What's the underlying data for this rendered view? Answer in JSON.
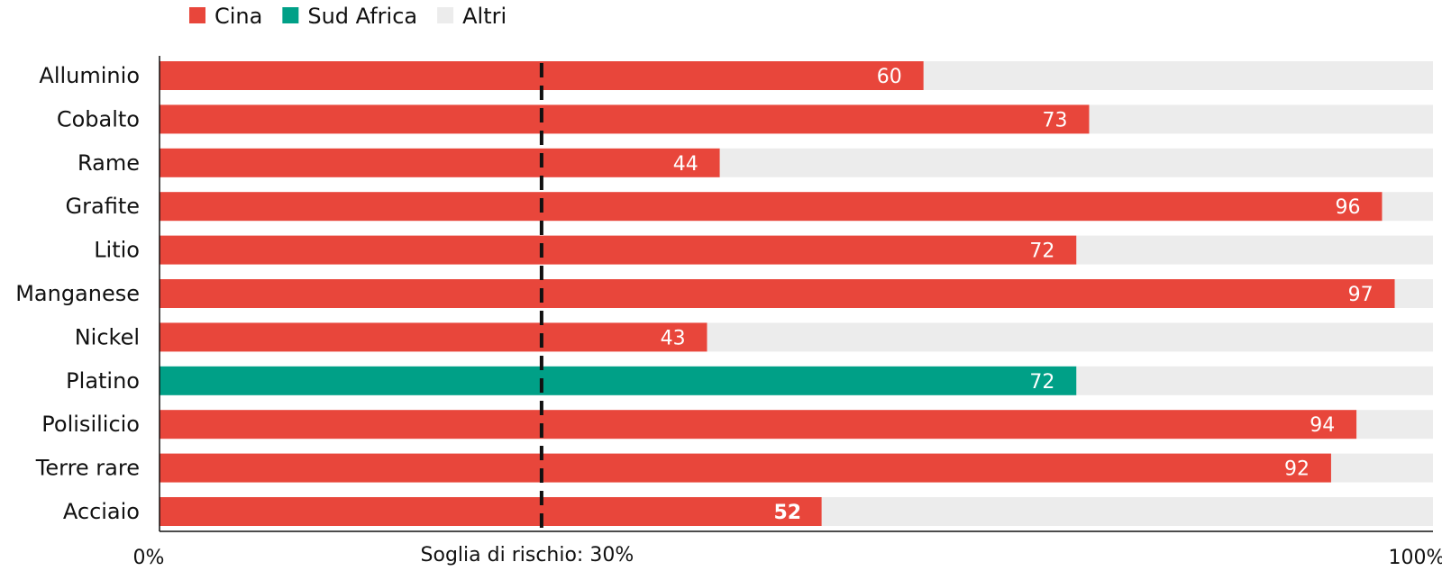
{
  "chart_data": {
    "type": "bar",
    "orientation": "horizontal",
    "stacked": true,
    "categories": [
      "Alluminio",
      "Cobalto",
      "Rame",
      "Grafite",
      "Litio",
      "Manganese",
      "Nickel",
      "Platino",
      "Polisilicio",
      "Terre rare",
      "Acciaio"
    ],
    "series": [
      {
        "name": "Cina",
        "color": "#e8463b",
        "values": [
          60,
          73,
          44,
          96,
          72,
          97,
          43,
          null,
          94,
          92,
          52
        ]
      },
      {
        "name": "Sud Africa",
        "color": "#00a087",
        "values": [
          null,
          null,
          null,
          null,
          null,
          null,
          null,
          72,
          null,
          null,
          null
        ]
      },
      {
        "name": "Altri",
        "color": "#ececec",
        "values": [
          40,
          27,
          56,
          4,
          28,
          3,
          57,
          28,
          6,
          8,
          48
        ]
      }
    ],
    "value_labels": [
      "60",
      "73",
      "44",
      "96",
      "72",
      "97",
      "43",
      "72",
      "94",
      "92",
      "52"
    ],
    "legend": {
      "placement": "top-left",
      "entries": [
        {
          "label": "Cina",
          "color": "#e8463b"
        },
        {
          "label": "Sud Africa",
          "color": "#00a087"
        },
        {
          "label": "Altri",
          "color": "#ececec"
        }
      ]
    },
    "xlim": [
      0,
      100
    ],
    "x_tick_labels": {
      "min": "0%",
      "max": "100%"
    },
    "reference_line": {
      "value": 30,
      "label": "Soglia di rischio: 30%",
      "style": "dashed",
      "color": "#111111"
    },
    "grid": false,
    "title": "",
    "xlabel": "",
    "ylabel": ""
  }
}
